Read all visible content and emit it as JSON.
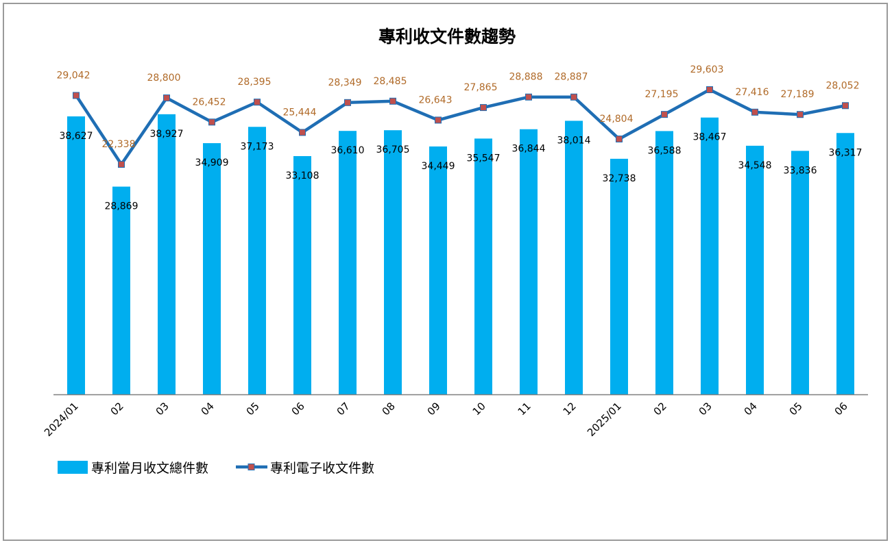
{
  "chart_data": {
    "type": "bar",
    "title": "專利收文件數趨勢",
    "categories": [
      "2024/01",
      "02",
      "03",
      "04",
      "05",
      "06",
      "07",
      "08",
      "09",
      "10",
      "11",
      "12",
      "2025/01",
      "02",
      "03",
      "04",
      "05",
      "06"
    ],
    "series": [
      {
        "name": "專利當月收文總件數",
        "type": "bar",
        "values": [
          38627,
          28869,
          38927,
          34909,
          37173,
          33108,
          36610,
          36705,
          34449,
          35547,
          36844,
          38014,
          32738,
          36588,
          38467,
          34548,
          33836,
          36317
        ],
        "labels": [
          "38,627",
          "28,869",
          "38,927",
          "34,909",
          "37,173",
          "33,108",
          "36,610",
          "36,705",
          "34,449",
          "35,547",
          "36,844",
          "38,014",
          "32,738",
          "36,588",
          "38,467",
          "34,548",
          "33,836",
          "36,317"
        ]
      },
      {
        "name": "專利電子收文件數",
        "type": "line",
        "values": [
          29042,
          22338,
          28800,
          26452,
          28395,
          25444,
          28349,
          28485,
          26643,
          27865,
          28888,
          28887,
          24804,
          27195,
          29603,
          27416,
          27189,
          28052
        ],
        "labels": [
          "29,042",
          "22,338",
          "28,800",
          "26,452",
          "28,395",
          "25,444",
          "28,349",
          "28,485",
          "26,643",
          "27,865",
          "28,888",
          "28,887",
          "24,804",
          "27,195",
          "29,603",
          "27,416",
          "27,189",
          "28,052"
        ]
      }
    ],
    "legend_position": "bottom-left",
    "grid": false,
    "colors": {
      "bar": "#00aeef",
      "line": "#1f6eb4",
      "marker_fill": "#c0504d",
      "line_label": "#b06a28",
      "axis": "#7f7f7f"
    }
  }
}
